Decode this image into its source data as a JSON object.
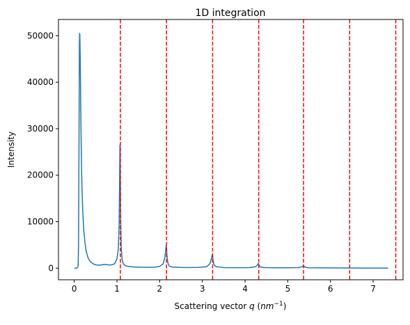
{
  "chart_data": {
    "type": "line",
    "title": "1D integration",
    "xlabel_prefix": "Scattering vector ",
    "xlabel_var": "q",
    "xlabel_unit_open": " (",
    "xlabel_unit_base": "nm",
    "xlabel_unit_exp": "−1",
    "xlabel_unit_close": ")",
    "ylabel": "Intensity",
    "xlim": [
      -0.37,
      7.7
    ],
    "ylim": [
      -2500,
      53500
    ],
    "grid": false,
    "xticks": [
      {
        "value": 0,
        "label": "0"
      },
      {
        "value": 1,
        "label": "1"
      },
      {
        "value": 2,
        "label": "2"
      },
      {
        "value": 3,
        "label": "3"
      },
      {
        "value": 4,
        "label": "4"
      },
      {
        "value": 5,
        "label": "5"
      },
      {
        "value": 6,
        "label": "6"
      },
      {
        "value": 7,
        "label": "7"
      }
    ],
    "yticks": [
      {
        "value": 0,
        "label": "0"
      },
      {
        "value": 10000,
        "label": "10000"
      },
      {
        "value": 20000,
        "label": "20000"
      },
      {
        "value": 30000,
        "label": "30000"
      },
      {
        "value": 40000,
        "label": "40000"
      },
      {
        "value": 50000,
        "label": "50000"
      }
    ],
    "series": [
      {
        "color": "#1f77b4",
        "x": [
          0.0,
          0.03,
          0.06,
          0.08,
          0.09,
          0.1,
          0.11,
          0.12,
          0.125,
          0.13,
          0.14,
          0.15,
          0.16,
          0.17,
          0.18,
          0.2,
          0.22,
          0.25,
          0.28,
          0.32,
          0.36,
          0.4,
          0.45,
          0.5,
          0.55,
          0.6,
          0.65,
          0.7,
          0.75,
          0.8,
          0.85,
          0.9,
          0.95,
          1.0,
          1.03,
          1.05,
          1.06,
          1.07,
          1.075,
          1.08,
          1.09,
          1.1,
          1.12,
          1.15,
          1.2,
          1.25,
          1.3,
          1.35,
          1.4,
          1.5,
          1.6,
          1.7,
          1.8,
          1.9,
          2.0,
          2.08,
          2.12,
          2.14,
          2.15,
          2.16,
          2.17,
          2.19,
          2.22,
          2.3,
          2.5,
          2.7,
          2.9,
          3.1,
          3.18,
          3.21,
          3.23,
          3.24,
          3.25,
          3.27,
          3.32,
          3.5,
          3.8,
          4.1,
          4.25,
          4.29,
          4.31,
          4.32,
          4.33,
          4.36,
          4.45,
          4.7,
          5.0,
          5.25,
          5.33,
          5.36,
          5.37,
          5.38,
          5.41,
          5.5,
          5.8,
          6.2,
          6.45,
          6.8,
          7.0,
          7.35
        ],
        "y": [
          0,
          0,
          0,
          200,
          500,
          5000,
          25000,
          48000,
          50500,
          50300,
          45000,
          36000,
          28000,
          22000,
          17500,
          12000,
          8500,
          5500,
          3600,
          2300,
          1600,
          1200,
          900,
          720,
          640,
          650,
          720,
          800,
          780,
          700,
          690,
          750,
          1000,
          2000,
          4000,
          9000,
          17000,
          26500,
          26000,
          18000,
          9000,
          4500,
          1800,
          900,
          500,
          380,
          320,
          280,
          250,
          220,
          200,
          190,
          190,
          220,
          380,
          900,
          2200,
          3800,
          4800,
          4500,
          2800,
          1200,
          450,
          230,
          160,
          140,
          150,
          300,
          1000,
          2000,
          2800,
          2700,
          1800,
          800,
          300,
          130,
          110,
          120,
          300,
          700,
          1000,
          900,
          600,
          250,
          120,
          90,
          80,
          120,
          300,
          500,
          520,
          420,
          200,
          90,
          60,
          40,
          30,
          10,
          0,
          0
        ]
      }
    ],
    "vlines": {
      "color": "#ff0000",
      "style": "dashed",
      "x": [
        1.08,
        2.16,
        3.24,
        4.32,
        5.37,
        6.45,
        7.53
      ]
    }
  }
}
